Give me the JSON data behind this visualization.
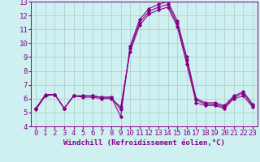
{
  "xlabel": "Windchill (Refroidissement éolien,°C)",
  "bg_color": "#cff0f0",
  "grid_color": "#aacaca",
  "line_color": "#880088",
  "hours": [
    0,
    1,
    2,
    3,
    4,
    5,
    6,
    7,
    8,
    9,
    10,
    11,
    12,
    13,
    14,
    15,
    16,
    17,
    18,
    19,
    20,
    21,
    22,
    23
  ],
  "series": [
    [
      5.3,
      6.3,
      6.3,
      5.3,
      6.2,
      6.2,
      6.2,
      6.1,
      6.1,
      4.7,
      9.8,
      11.7,
      12.5,
      12.8,
      13.0,
      11.6,
      9.0,
      6.0,
      5.7,
      5.7,
      5.5,
      6.2,
      6.5,
      5.6
    ],
    [
      5.3,
      6.2,
      6.3,
      5.3,
      6.2,
      6.2,
      6.2,
      6.1,
      6.1,
      5.2,
      9.6,
      11.5,
      12.3,
      12.6,
      12.8,
      11.4,
      8.8,
      5.9,
      5.6,
      5.6,
      5.4,
      6.1,
      6.4,
      5.5
    ],
    [
      5.2,
      6.2,
      6.3,
      5.3,
      6.2,
      6.1,
      6.1,
      6.0,
      6.0,
      5.4,
      9.4,
      11.3,
      12.1,
      12.4,
      12.6,
      11.2,
      8.5,
      5.7,
      5.5,
      5.5,
      5.3,
      6.0,
      6.2,
      5.4
    ]
  ],
  "ylim": [
    4,
    13
  ],
  "yticks": [
    4,
    5,
    6,
    7,
    8,
    9,
    10,
    11,
    12,
    13
  ],
  "xticks": [
    0,
    1,
    2,
    3,
    4,
    5,
    6,
    7,
    8,
    9,
    10,
    11,
    12,
    13,
    14,
    15,
    16,
    17,
    18,
    19,
    20,
    21,
    22,
    23
  ],
  "font_size": 6.5,
  "marker": "D",
  "marker_size": 1.8,
  "linewidth": 0.8
}
